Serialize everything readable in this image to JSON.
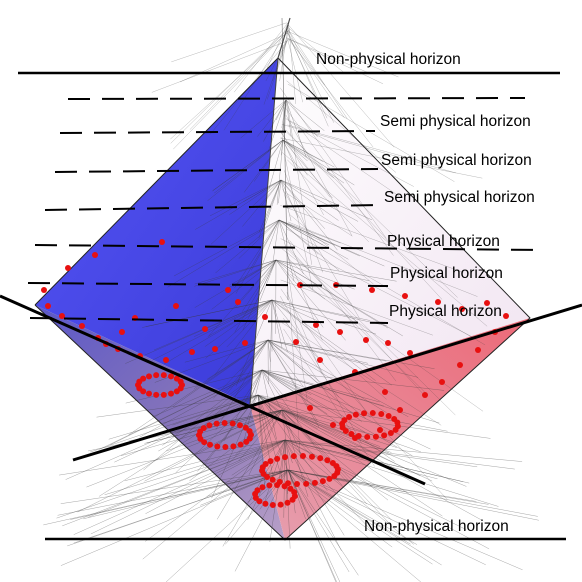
{
  "labels": {
    "top_nonphysical": "Non-physical horizon",
    "semi1": "Semi physical horizon",
    "semi2": "Semi physical horizon",
    "semi3": "Semi physical horizon",
    "phys1": "Physical horizon",
    "phys2": "Physical horizon",
    "phys3": "Physical horizon",
    "bottom_nonphysical": "Non-physical horizon"
  },
  "colors": {
    "blue_face": "#4848f0",
    "blue_lower_face": "#6e5db0",
    "white_face": "#f6eef6",
    "pink_face": "#e0606e",
    "dot": "#e81010",
    "line": "#000000",
    "tree": "#3a3a3a"
  }
}
